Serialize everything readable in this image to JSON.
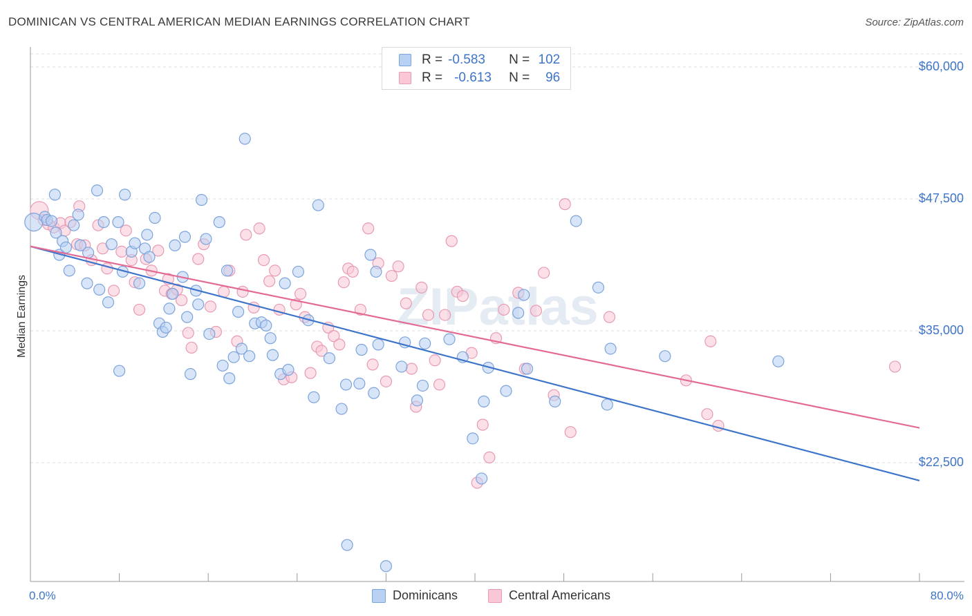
{
  "header": {
    "title": "DOMINICAN VS CENTRAL AMERICAN MEDIAN EARNINGS CORRELATION CHART",
    "source": "Source: ZipAtlas.com"
  },
  "legend": {
    "rows": [
      {
        "r_label": "R =",
        "r_value": "-0.583",
        "n_label": "N =",
        "n_value": "102"
      },
      {
        "r_label": "R =",
        "r_value": "-0.613",
        "n_label": "N =",
        "n_value": "96"
      }
    ]
  },
  "bottom_legend": {
    "dominicans": "Dominicans",
    "central_americans": "Central Americans"
  },
  "watermark": "ZIPatlas",
  "colors": {
    "blue": "#3d74c9",
    "blue_fill": "#b8d0f2",
    "pink": "#e26a93",
    "pink_fill": "#f9c7d6",
    "grid": "#dcdcdc"
  },
  "chart_data": {
    "type": "scatter",
    "title": "DOMINICAN VS CENTRAL AMERICAN MEDIAN EARNINGS CORRELATION CHART",
    "xlabel": "",
    "ylabel": "Median Earnings",
    "x_tick_labels": [
      "0.0%",
      "80.0%"
    ],
    "y_tick_labels": [
      "$22,500",
      "$35,000",
      "$47,500",
      "$60,000"
    ],
    "y_ticks": [
      22500,
      35000,
      47500,
      60000
    ],
    "xlim": [
      0,
      80
    ],
    "ylim": [
      10000,
      62000
    ],
    "grid": true,
    "series": [
      {
        "name": "Dominicans",
        "r": -0.583,
        "n": 102,
        "trend": [
          [
            0,
            43000
          ],
          [
            80,
            20800
          ]
        ],
        "points": [
          [
            0.3,
            45300
          ],
          [
            1.3,
            45800
          ],
          [
            1.5,
            45500
          ],
          [
            1.9,
            45400
          ],
          [
            2.2,
            47900
          ],
          [
            2.3,
            44300
          ],
          [
            2.6,
            42200
          ],
          [
            2.9,
            43500
          ],
          [
            3.2,
            42900
          ],
          [
            3.5,
            40700
          ],
          [
            3.9,
            45000
          ],
          [
            4.3,
            46000
          ],
          [
            4.5,
            43100
          ],
          [
            5.1,
            39500
          ],
          [
            5.2,
            42400
          ],
          [
            6.0,
            48300
          ],
          [
            6.2,
            38900
          ],
          [
            6.6,
            45300
          ],
          [
            7.0,
            37700
          ],
          [
            7.3,
            43200
          ],
          [
            7.9,
            45300
          ],
          [
            8.0,
            31200
          ],
          [
            8.3,
            40600
          ],
          [
            8.5,
            47900
          ],
          [
            9.1,
            42500
          ],
          [
            9.4,
            43300
          ],
          [
            9.8,
            39500
          ],
          [
            10.3,
            42800
          ],
          [
            10.5,
            44100
          ],
          [
            10.7,
            42000
          ],
          [
            11.2,
            45700
          ],
          [
            11.6,
            35700
          ],
          [
            11.9,
            34900
          ],
          [
            12.2,
            35300
          ],
          [
            12.5,
            37100
          ],
          [
            12.8,
            38500
          ],
          [
            13.0,
            43100
          ],
          [
            13.7,
            40100
          ],
          [
            13.9,
            43900
          ],
          [
            14.1,
            36300
          ],
          [
            14.4,
            30900
          ],
          [
            14.9,
            38800
          ],
          [
            15.1,
            37500
          ],
          [
            15.4,
            47400
          ],
          [
            15.8,
            43700
          ],
          [
            16.1,
            34700
          ],
          [
            17.0,
            45300
          ],
          [
            17.3,
            31700
          ],
          [
            17.7,
            40700
          ],
          [
            17.9,
            30500
          ],
          [
            18.3,
            32500
          ],
          [
            18.7,
            36800
          ],
          [
            19.0,
            33300
          ],
          [
            19.3,
            53200
          ],
          [
            19.7,
            32600
          ],
          [
            20.2,
            35700
          ],
          [
            20.8,
            35800
          ],
          [
            21.2,
            35500
          ],
          [
            21.6,
            34300
          ],
          [
            21.8,
            32700
          ],
          [
            22.5,
            30900
          ],
          [
            22.9,
            39500
          ],
          [
            23.2,
            31300
          ],
          [
            24.1,
            40600
          ],
          [
            25.0,
            36000
          ],
          [
            25.5,
            28700
          ],
          [
            25.9,
            46900
          ],
          [
            26.9,
            32400
          ],
          [
            28.0,
            27600
          ],
          [
            28.4,
            29900
          ],
          [
            28.5,
            14700
          ],
          [
            29.6,
            30000
          ],
          [
            29.8,
            33200
          ],
          [
            30.6,
            42200
          ],
          [
            30.9,
            29100
          ],
          [
            31.1,
            40600
          ],
          [
            31.3,
            33700
          ],
          [
            32.0,
            12700
          ],
          [
            33.4,
            31600
          ],
          [
            33.7,
            33900
          ],
          [
            34.8,
            28400
          ],
          [
            35.3,
            29800
          ],
          [
            35.5,
            33800
          ],
          [
            37.7,
            34200
          ],
          [
            38.9,
            32500
          ],
          [
            39.8,
            24800
          ],
          [
            40.6,
            21000
          ],
          [
            40.8,
            28300
          ],
          [
            41.2,
            31500
          ],
          [
            42.8,
            29300
          ],
          [
            43.9,
            36700
          ],
          [
            44.4,
            38400
          ],
          [
            44.7,
            31400
          ],
          [
            47.2,
            28300
          ],
          [
            49.1,
            45400
          ],
          [
            51.1,
            39100
          ],
          [
            51.9,
            28000
          ],
          [
            52.2,
            33300
          ],
          [
            57.1,
            32600
          ],
          [
            67.3,
            32100
          ]
        ]
      },
      {
        "name": "Central Americans",
        "r": -0.613,
        "n": 96,
        "trend": [
          [
            0,
            43000
          ],
          [
            80,
            25800
          ]
        ],
        "points": [
          [
            0.8,
            46400
          ],
          [
            1.2,
            45500
          ],
          [
            1.6,
            45100
          ],
          [
            2.1,
            44800
          ],
          [
            2.7,
            45200
          ],
          [
            3.1,
            44500
          ],
          [
            3.6,
            45300
          ],
          [
            4.2,
            43200
          ],
          [
            4.4,
            46800
          ],
          [
            4.9,
            43100
          ],
          [
            5.5,
            41700
          ],
          [
            6.1,
            45000
          ],
          [
            6.5,
            42800
          ],
          [
            6.9,
            40900
          ],
          [
            7.5,
            38800
          ],
          [
            8.2,
            42500
          ],
          [
            8.6,
            44500
          ],
          [
            9.1,
            41700
          ],
          [
            9.4,
            39600
          ],
          [
            9.8,
            37000
          ],
          [
            10.4,
            41800
          ],
          [
            10.9,
            40700
          ],
          [
            11.5,
            42600
          ],
          [
            12.1,
            38800
          ],
          [
            12.4,
            39900
          ],
          [
            12.7,
            38500
          ],
          [
            13.2,
            38900
          ],
          [
            13.6,
            37900
          ],
          [
            14.2,
            34800
          ],
          [
            14.5,
            33400
          ],
          [
            15.1,
            41800
          ],
          [
            15.6,
            43200
          ],
          [
            16.2,
            37300
          ],
          [
            16.7,
            34900
          ],
          [
            17.4,
            38700
          ],
          [
            17.9,
            40700
          ],
          [
            18.6,
            34000
          ],
          [
            19.1,
            38700
          ],
          [
            19.4,
            44100
          ],
          [
            20.1,
            37200
          ],
          [
            20.6,
            44700
          ],
          [
            21.0,
            41700
          ],
          [
            21.5,
            39700
          ],
          [
            22.0,
            40700
          ],
          [
            22.4,
            37000
          ],
          [
            22.8,
            30400
          ],
          [
            23.5,
            30600
          ],
          [
            23.9,
            37500
          ],
          [
            24.3,
            38500
          ],
          [
            24.7,
            36300
          ],
          [
            25.2,
            31000
          ],
          [
            25.8,
            33500
          ],
          [
            26.2,
            33100
          ],
          [
            26.8,
            35300
          ],
          [
            27.3,
            34500
          ],
          [
            27.8,
            33700
          ],
          [
            28.2,
            39600
          ],
          [
            28.6,
            40900
          ],
          [
            29.0,
            40600
          ],
          [
            29.7,
            37000
          ],
          [
            30.4,
            44700
          ],
          [
            30.8,
            31800
          ],
          [
            31.3,
            41400
          ],
          [
            32.0,
            30200
          ],
          [
            32.5,
            40200
          ],
          [
            33.1,
            41100
          ],
          [
            33.8,
            37600
          ],
          [
            34.3,
            31400
          ],
          [
            34.7,
            27800
          ],
          [
            35.2,
            39100
          ],
          [
            35.8,
            36500
          ],
          [
            36.4,
            32200
          ],
          [
            36.8,
            29900
          ],
          [
            37.3,
            36500
          ],
          [
            37.9,
            43500
          ],
          [
            38.4,
            38700
          ],
          [
            38.9,
            38300
          ],
          [
            39.7,
            32900
          ],
          [
            40.2,
            20600
          ],
          [
            40.7,
            26100
          ],
          [
            41.3,
            23000
          ],
          [
            41.9,
            34300
          ],
          [
            42.6,
            37000
          ],
          [
            43.9,
            38600
          ],
          [
            44.5,
            31400
          ],
          [
            45.5,
            36900
          ],
          [
            46.2,
            40500
          ],
          [
            47.1,
            28900
          ],
          [
            48.1,
            47000
          ],
          [
            48.6,
            25400
          ],
          [
            52.1,
            36300
          ],
          [
            59.0,
            30300
          ],
          [
            60.9,
            27100
          ],
          [
            61.2,
            34000
          ],
          [
            61.9,
            26000
          ],
          [
            77.8,
            31600
          ]
        ]
      }
    ]
  }
}
